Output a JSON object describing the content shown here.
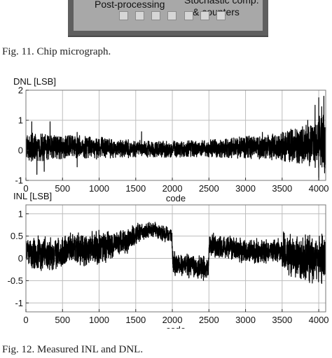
{
  "figure11": {
    "labels": [
      "Post-processing",
      "Stochastic comp.",
      "& counters"
    ],
    "caption": "Fig. 11.   Chip micrograph."
  },
  "figure12": {
    "caption": "Fig. 12.   Measured INL and DNL."
  },
  "chart_data": [
    {
      "type": "line",
      "ylabel": "DNL [LSB]",
      "xlabel": "code",
      "xlim": [
        0,
        4095
      ],
      "ylim": [
        -1,
        2
      ],
      "xticks": [
        0,
        500,
        1000,
        1500,
        2000,
        2500,
        3000,
        3500,
        4000
      ],
      "yticks": [
        2,
        1,
        0,
        -1
      ],
      "grid": true,
      "series": [
        {
          "x": [
            0,
            250,
            500,
            750,
            1000,
            1250,
            1500,
            1750,
            2000,
            2250,
            2500,
            2750,
            3000,
            3250,
            3500,
            3750,
            3900,
            4000,
            4095
          ],
          "y_min": [
            -0.38,
            -0.35,
            -0.3,
            -0.28,
            -0.3,
            -0.25,
            -0.25,
            -0.22,
            -0.25,
            -0.22,
            -0.22,
            -0.25,
            -0.28,
            -0.3,
            -0.35,
            -0.45,
            -0.55,
            -0.6,
            -0.6
          ],
          "y_max": [
            0.6,
            0.55,
            0.5,
            0.5,
            0.45,
            0.38,
            0.35,
            0.3,
            0.32,
            0.32,
            0.35,
            0.4,
            0.48,
            0.5,
            0.6,
            0.8,
            1.0,
            1.2,
            1.3
          ],
          "peaks": [
            [
              80,
              0.95
            ],
            [
              330,
              0.95
            ],
            [
              700,
              0.6
            ],
            [
              1580,
              0.62
            ],
            [
              1920,
              0.3
            ],
            [
              3230,
              0.6
            ],
            [
              3620,
              0.7
            ],
            [
              3700,
              0.68
            ],
            [
              3850,
              1.0
            ],
            [
              3950,
              1.5
            ],
            [
              4000,
              1.75
            ],
            [
              4040,
              1.45
            ],
            [
              4070,
              1.8
            ]
          ],
          "troughs": [
            [
              150,
              -0.8
            ],
            [
              250,
              -0.7
            ],
            [
              700,
              -0.55
            ],
            [
              4000,
              -1.0
            ],
            [
              4080,
              -0.75
            ]
          ]
        }
      ]
    },
    {
      "type": "line",
      "ylabel": "INL [LSB]",
      "xlabel": "code",
      "xlim": [
        0,
        4095
      ],
      "ylim": [
        -1.2,
        1.2
      ],
      "xticks": [
        0,
        500,
        1000,
        1500,
        2000,
        2500,
        3000,
        3500,
        4000
      ],
      "yticks": [
        1,
        0.5,
        0,
        -0.5,
        -1
      ],
      "grid": true,
      "series": [
        {
          "x": [
            0,
            200,
            400,
            600,
            800,
            1000,
            1200,
            1400,
            1500,
            1600,
            1700,
            1800,
            1900,
            1990,
            2010,
            2200,
            2400,
            2490,
            2510,
            2700,
            2900,
            3100,
            3300,
            3490,
            3510,
            3700,
            3900,
            4095
          ],
          "center": [
            0.15,
            0.1,
            0.1,
            0.2,
            0.2,
            0.25,
            0.3,
            0.4,
            0.55,
            0.6,
            0.65,
            0.62,
            0.55,
            0.5,
            -0.1,
            -0.15,
            -0.2,
            -0.25,
            0.3,
            0.25,
            0.2,
            0.15,
            0.15,
            0.2,
            0.15,
            0.0,
            0.0,
            0.0
          ],
          "spread": [
            0.45,
            0.45,
            0.4,
            0.4,
            0.4,
            0.4,
            0.35,
            0.3,
            0.25,
            0.2,
            0.2,
            0.2,
            0.2,
            0.2,
            0.3,
            0.3,
            0.3,
            0.3,
            0.3,
            0.3,
            0.3,
            0.3,
            0.3,
            0.3,
            0.5,
            0.55,
            0.6,
            0.6
          ]
        }
      ]
    }
  ]
}
